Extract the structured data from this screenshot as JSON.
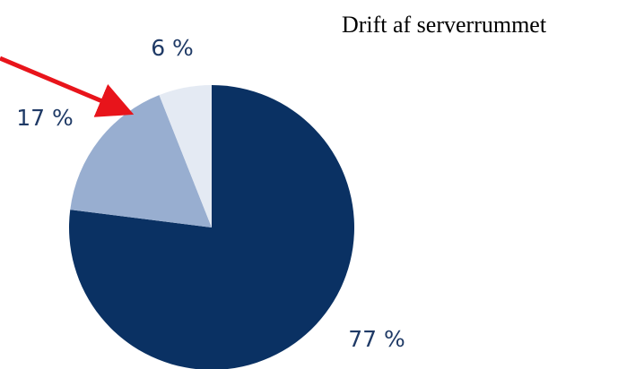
{
  "chart_data": {
    "type": "pie",
    "title": "Drift af serverrummet",
    "categories": [
      null,
      null,
      null
    ],
    "values": [
      77,
      17,
      6
    ],
    "value_labels": [
      "77 %",
      "17 %",
      "6 %"
    ],
    "colors": [
      "#0a3163",
      "#98aed0",
      "#e4eaf3"
    ]
  }
}
